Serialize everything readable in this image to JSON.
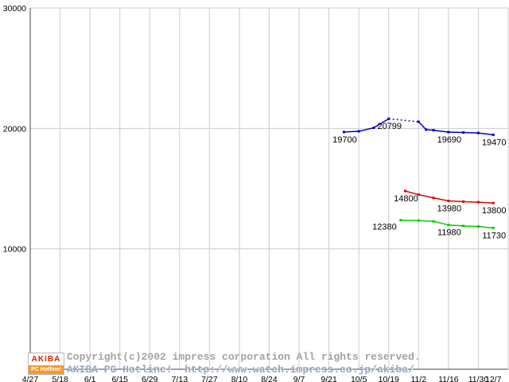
{
  "chart_data": {
    "type": "line",
    "title": "",
    "xlabel": "",
    "ylabel": "",
    "grid": true,
    "y_axis": {
      "min": 0,
      "max": 30000,
      "ticks": [
        30000,
        20000,
        10000
      ]
    },
    "x_axis": {
      "tick_labels": [
        "4/27",
        "5/18",
        "6/1",
        "6/15",
        "6/29",
        "7/13",
        "7/27",
        "8/10",
        "8/24",
        "9/7",
        "9/21",
        "10/5",
        "10/19",
        "11/2",
        "11/16",
        "11/30",
        "12/7"
      ],
      "tick_positions": [
        0,
        1,
        2,
        3,
        4,
        5,
        6,
        7,
        8,
        9,
        10,
        11,
        12,
        13,
        14,
        15,
        15.5
      ],
      "gridline_positions": [
        0,
        1,
        2,
        3,
        4,
        5,
        6,
        7,
        8,
        9,
        10,
        11,
        12,
        13,
        14,
        15,
        16
      ]
    },
    "series": [
      {
        "name": "blue-price-line",
        "color": "#0000cc",
        "points": [
          {
            "x": 10.5,
            "v": 19700,
            "label": "19700",
            "label_pos": "below"
          },
          {
            "x": 11.0,
            "v": 19760
          },
          {
            "x": 11.5,
            "v": 20050
          },
          {
            "x": 12.0,
            "v": 20799,
            "label": "20799",
            "label_pos": "below",
            "dashed_to_next": true
          },
          {
            "x": 13.0,
            "v": 20550
          },
          {
            "x": 13.25,
            "v": 19900
          },
          {
            "x": 13.5,
            "v": 19850
          },
          {
            "x": 14.0,
            "v": 19690,
            "label": "19690",
            "label_pos": "below"
          },
          {
            "x": 14.5,
            "v": 19660
          },
          {
            "x": 15.0,
            "v": 19620
          },
          {
            "x": 15.5,
            "v": 19470,
            "label": "19470",
            "label_pos": "below"
          }
        ]
      },
      {
        "name": "red-price-line",
        "color": "#dd0000",
        "points": [
          {
            "x": 12.55,
            "v": 14800,
            "label": "14800",
            "label_pos": "below"
          },
          {
            "x": 13.0,
            "v": 14500
          },
          {
            "x": 13.5,
            "v": 14230
          },
          {
            "x": 14.0,
            "v": 13980,
            "label": "13980",
            "label_pos": "below"
          },
          {
            "x": 14.5,
            "v": 13920
          },
          {
            "x": 15.0,
            "v": 13870
          },
          {
            "x": 15.5,
            "v": 13800,
            "label": "13800",
            "label_pos": "below"
          }
        ]
      },
      {
        "name": "green-price-line",
        "color": "#00cc00",
        "points": [
          {
            "x": 12.4,
            "v": 12380,
            "label": "12380",
            "label_pos": "left"
          },
          {
            "x": 13.0,
            "v": 12350
          },
          {
            "x": 13.5,
            "v": 12280
          },
          {
            "x": 14.0,
            "v": 11980,
            "label": "11980",
            "label_pos": "below"
          },
          {
            "x": 14.5,
            "v": 11900
          },
          {
            "x": 15.0,
            "v": 11850
          },
          {
            "x": 15.5,
            "v": 11730,
            "label": "11730",
            "label_pos": "below"
          }
        ]
      }
    ]
  },
  "footer": {
    "copyright": "Copyright(c)2002 impress corporation All rights reserved.",
    "site": "AKIBA PC Hotline!  http://www.watch.impress.co.jp/akiba/"
  },
  "logo": {
    "top": "AKIBA",
    "bottom": "PC Hotline!"
  },
  "colors": {
    "grid": "#cccccc",
    "axis": "#444444",
    "tick_text": "#000000",
    "footer_copyright": "#a2a2a2",
    "footer_site": "#93a5bf",
    "logo_red": "#dd2200",
    "logo_orange": "#f49a2a"
  }
}
